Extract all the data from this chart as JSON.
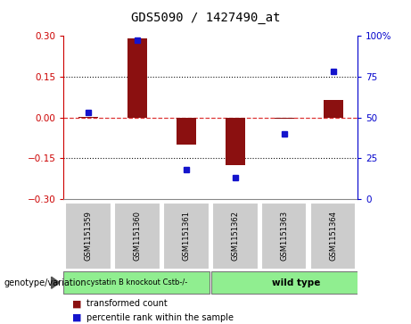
{
  "title": "GDS5090 / 1427490_at",
  "samples": [
    "GSM1151359",
    "GSM1151360",
    "GSM1151361",
    "GSM1151362",
    "GSM1151363",
    "GSM1151364"
  ],
  "bar_values": [
    0.003,
    0.29,
    -0.1,
    -0.175,
    -0.005,
    0.065
  ],
  "percentile_values": [
    53,
    97,
    18,
    13,
    40,
    78
  ],
  "group_labels": [
    "cystatin B knockout Cstb-/-",
    "wild type"
  ],
  "group_colors": [
    "#90EE90",
    "#90EE90"
  ],
  "group_split": 3,
  "bar_color": "#8B1010",
  "dot_color": "#1414CC",
  "ylim_left": [
    -0.3,
    0.3
  ],
  "ylim_right": [
    0,
    100
  ],
  "yticks_left": [
    -0.3,
    -0.15,
    0.0,
    0.15,
    0.3
  ],
  "yticks_right": [
    0,
    25,
    50,
    75,
    100
  ],
  "left_tick_color": "#CC0000",
  "right_tick_color": "#0000CC",
  "zero_line_color": "#DD3333",
  "dot_line_color": "#DD3333",
  "hline_color": "#111111",
  "legend_label_bar": "transformed count",
  "legend_label_dot": "percentile rank within the sample",
  "genotype_label": "genotype/variation",
  "sample_bg": "#CCCCCC",
  "plot_bg": "#FFFFFF"
}
